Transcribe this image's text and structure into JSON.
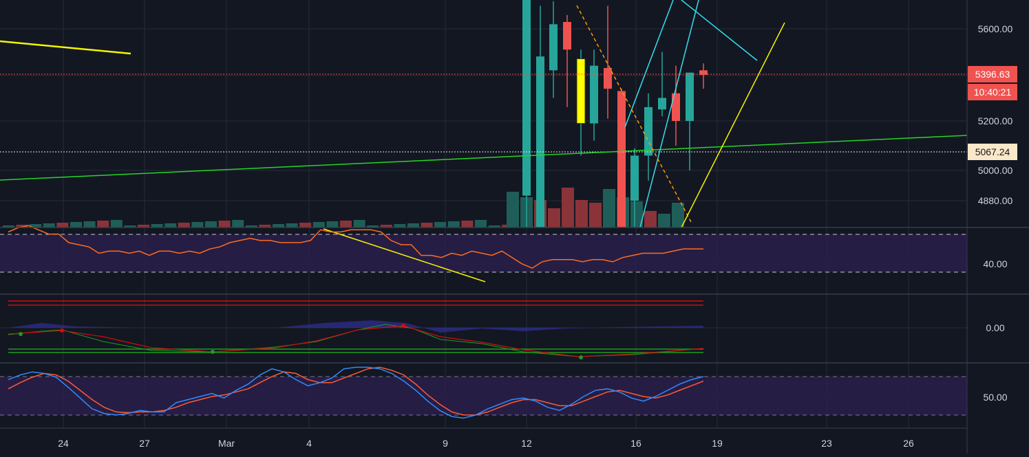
{
  "colors": {
    "background": "#131722",
    "grid": "#262b38",
    "pane_separator": "#363c4e",
    "axis_text": "#d1d4dc",
    "up": "#26a69a",
    "down": "#ef5350",
    "highlight_candle": "#ffff00",
    "volume_up": "#1f5e58",
    "volume_down": "#8a3338",
    "band_fill": "#2a1f4a",
    "rsi_line": "#ff6d1f",
    "stoch_k": "#2f8cff",
    "stoch_d": "#ff5a36",
    "trend_yellow": "#f5f500",
    "trend_green": "#26d626",
    "trend_cyan": "#35e0f0",
    "trend_orange_dash": "#ff9900",
    "ema_red": "#d10d0d",
    "ema_green": "#1a9e1a",
    "macd_blue": "#3333aa"
  },
  "chart_data": {
    "type": "candlestick",
    "price_axis": {
      "ticks": [
        "5600.00",
        "5200.00",
        "5000.00",
        "4880.00"
      ],
      "last_price_label": "5396.63",
      "countdown_label": "10:40:21",
      "marker_label": "5067.24"
    },
    "x_axis": {
      "tick_labels": [
        "24",
        "27",
        "Mar",
        "4",
        "9",
        "12",
        "16",
        "19",
        "23",
        "26"
      ]
    },
    "candles": [
      {
        "o": 4900,
        "h": 5800,
        "l": 4700,
        "c": 5800
      },
      {
        "o": 4730,
        "h": 5700,
        "l": 4700,
        "c": 5480
      },
      {
        "o": 5420,
        "h": 5720,
        "l": 5300,
        "c": 5620
      },
      {
        "o": 5630,
        "h": 5660,
        "l": 5260,
        "c": 5510
      },
      {
        "o": 5190,
        "h": 5510,
        "l": 5060,
        "c": 5470
      },
      {
        "o": 5190,
        "h": 5510,
        "l": 5120,
        "c": 5440
      },
      {
        "o": 5430,
        "h": 5700,
        "l": 5210,
        "c": 5340
      },
      {
        "o": 5330,
        "h": 5340,
        "l": 4650,
        "c": 4650
      },
      {
        "o": 4880,
        "h": 5090,
        "l": 4650,
        "c": 5060
      },
      {
        "o": 5060,
        "h": 5320,
        "l": 4960,
        "c": 5260
      },
      {
        "o": 5250,
        "h": 5500,
        "l": 5220,
        "c": 5300
      },
      {
        "o": 5320,
        "h": 5440,
        "l": 5100,
        "c": 5200
      },
      {
        "o": 5200,
        "h": 5410,
        "l": 5000,
        "c": 5410
      },
      {
        "o": 5420,
        "h": 5450,
        "l": 5340,
        "c": 5400
      }
    ],
    "highlight_index": 4,
    "volume": [
      {
        "v": 2.6,
        "up": true
      },
      {
        "v": 2.2,
        "up": true
      },
      {
        "v": 2.0,
        "up": false
      },
      {
        "v": 1.4,
        "up": false
      },
      {
        "v": 2.9,
        "up": false
      },
      {
        "v": 2.0,
        "up": false
      },
      {
        "v": 1.8,
        "up": false
      },
      {
        "v": 2.8,
        "up": true
      },
      {
        "v": 2.2,
        "up": true
      },
      {
        "v": 1.9,
        "up": true
      },
      {
        "v": 1.2,
        "up": false
      },
      {
        "v": 1.0,
        "up": true
      },
      {
        "v": 1.8,
        "up": true
      }
    ],
    "rsi": {
      "ytick": "40.00",
      "values": [
        55,
        57,
        58,
        56,
        54,
        54,
        50,
        49,
        48,
        45,
        46,
        46,
        45,
        46,
        44,
        46,
        46,
        45,
        46,
        45,
        47,
        48,
        50,
        51,
        52,
        51,
        51,
        50,
        50,
        50,
        51,
        56,
        55,
        55,
        56,
        56,
        56,
        55,
        51,
        49,
        49,
        44,
        44,
        43,
        45,
        44,
        46,
        45,
        44,
        46,
        43,
        40,
        38,
        41,
        42,
        42,
        42,
        41,
        42,
        42,
        41,
        43,
        44,
        45,
        45,
        45,
        46,
        47,
        47,
        47
      ]
    },
    "oscillator": {
      "ytick": "0.00"
    },
    "stochastic": {
      "ytick": "50.00",
      "k": [
        72,
        78,
        82,
        80,
        75,
        62,
        48,
        34,
        28,
        26,
        28,
        32,
        30,
        30,
        42,
        46,
        50,
        54,
        48,
        58,
        66,
        78,
        86,
        82,
        72,
        64,
        68,
        74,
        86,
        88,
        88,
        86,
        80,
        70,
        58,
        44,
        32,
        24,
        22,
        26,
        34,
        40,
        46,
        48,
        44,
        36,
        32,
        40,
        50,
        58,
        60,
        56,
        48,
        44,
        50,
        58,
        66,
        72,
        76
      ],
      "d": [
        60,
        68,
        75,
        80,
        78,
        70,
        58,
        46,
        36,
        30,
        29,
        30,
        30,
        32,
        36,
        42,
        46,
        50,
        52,
        56,
        60,
        68,
        76,
        82,
        80,
        72,
        68,
        68,
        74,
        80,
        86,
        88,
        84,
        78,
        66,
        52,
        40,
        30,
        26,
        26,
        30,
        36,
        42,
        46,
        46,
        42,
        38,
        38,
        44,
        50,
        56,
        58,
        54,
        50,
        48,
        52,
        58,
        64,
        70
      ]
    }
  }
}
